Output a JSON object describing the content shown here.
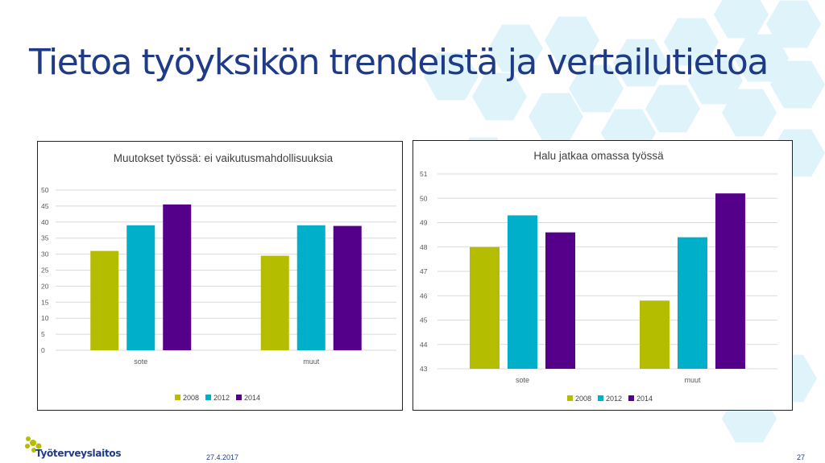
{
  "slide": {
    "title": "Tietoa työyksikön trendeistä ja vertailutietoa",
    "date": "27.4.2017",
    "page_number": "27",
    "logo_text": "Työterveyslaitos"
  },
  "colors": {
    "title": "#1f3b87",
    "series": [
      "#b5bd00",
      "#00afc9",
      "#55008a"
    ],
    "grid": "#d9d9d9",
    "hexagon": "#dff3fa"
  },
  "chart_data": [
    {
      "type": "bar",
      "title": "Muutokset työssä: ei vaikutusmahdollisuuksia",
      "categories": [
        "sote",
        "muut"
      ],
      "series": [
        {
          "name": "2008",
          "values": [
            31,
            29.5
          ]
        },
        {
          "name": "2012",
          "values": [
            39,
            39
          ]
        },
        {
          "name": "2014",
          "values": [
            45.5,
            38.8
          ]
        }
      ],
      "yticks": [
        "0",
        "5",
        "10",
        "15",
        "20",
        "25",
        "30",
        "35",
        "40",
        "45",
        "50"
      ],
      "ylim": [
        0,
        50
      ],
      "grid": true,
      "legend": "bottom"
    },
    {
      "type": "bar",
      "title": "Halu jatkaa omassa työssä",
      "categories": [
        "sote",
        "muut"
      ],
      "series": [
        {
          "name": "2008",
          "values": [
            48,
            45.8
          ]
        },
        {
          "name": "2012",
          "values": [
            49.3,
            48.4
          ]
        },
        {
          "name": "2014",
          "values": [
            48.6,
            50.2
          ]
        }
      ],
      "yticks": [
        "43",
        "44",
        "45",
        "46",
        "47",
        "48",
        "49",
        "50",
        "51"
      ],
      "ylim": [
        43,
        51
      ],
      "grid": true,
      "legend": "bottom"
    }
  ]
}
